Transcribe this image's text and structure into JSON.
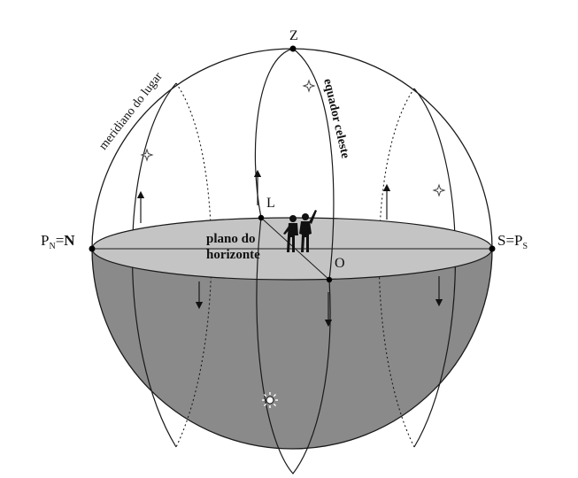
{
  "labels": {
    "zenith": "Z",
    "north_prefix": "P",
    "north_sub": "N",
    "north_eq": "=",
    "north_main": "N",
    "south_prefix": "S=P",
    "south_sub": "S",
    "east": "L",
    "west": "O",
    "plane_line1": "plano do",
    "plane_line2": "horizonte",
    "meridian": "meridiano do lugar",
    "equator": "equador celeste"
  },
  "colors": {
    "lower_hemisphere": "#8a8a8a",
    "horizon_plane": "#c4c4c4",
    "outline": "#1a1a1a"
  },
  "icons": [
    "star-icon",
    "sun-icon",
    "observers-silhouette"
  ]
}
